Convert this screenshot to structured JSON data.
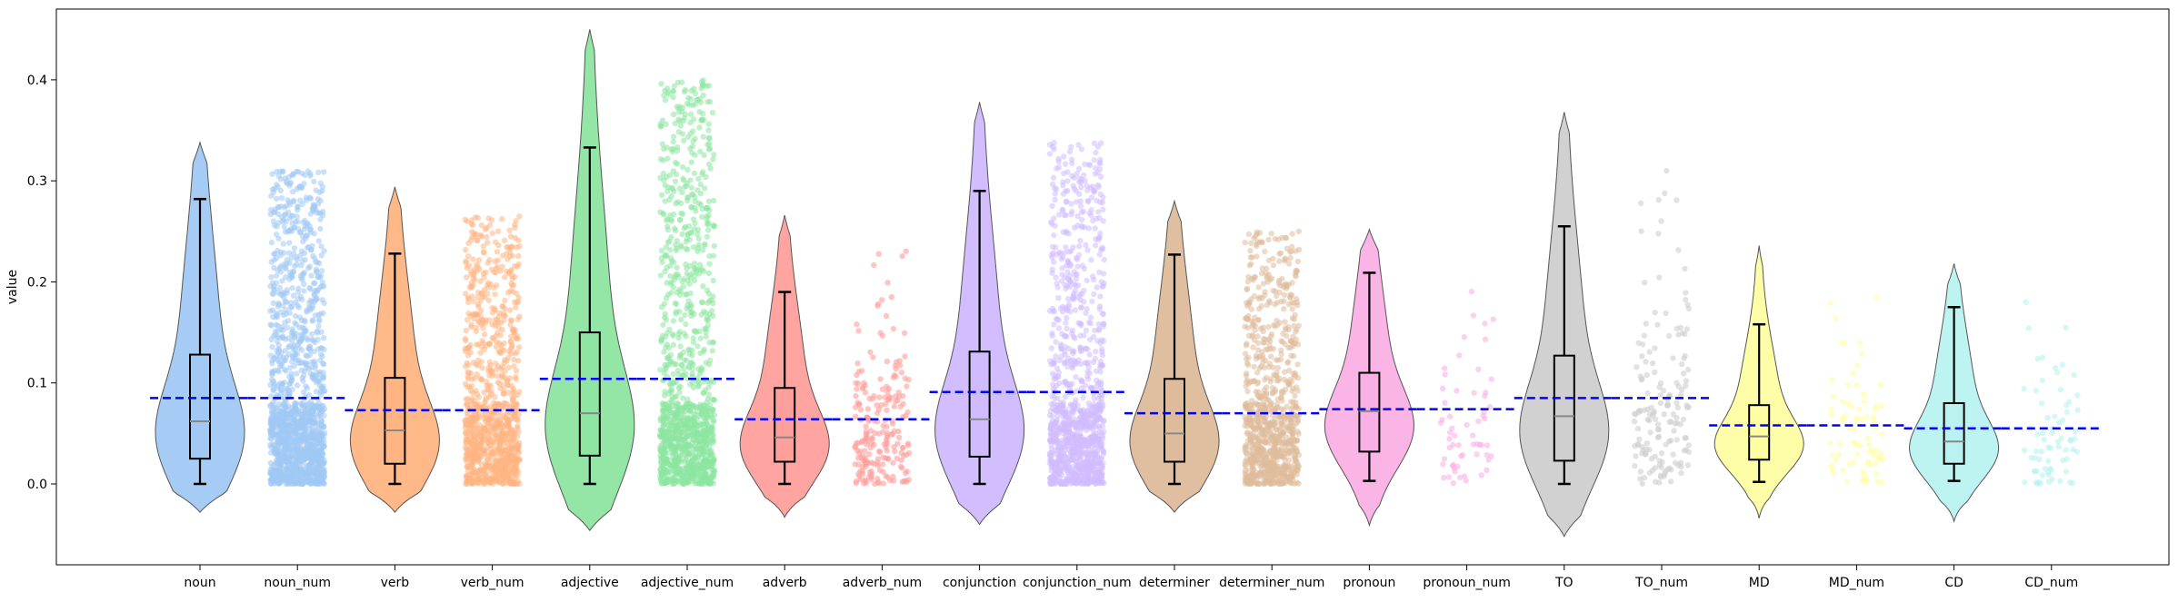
{
  "chart_data": {
    "type": "violin",
    "title": "",
    "xlabel": "",
    "ylabel": "value",
    "ylim": [
      -0.08,
      0.47
    ],
    "yticks": [
      0.0,
      0.1,
      0.2,
      0.3,
      0.4
    ],
    "ytick_labels": [
      "0.0",
      "0.1",
      "0.2",
      "0.3",
      "0.4"
    ],
    "grid": false,
    "legend": "none",
    "categories": [
      "noun",
      "noun_num",
      "verb",
      "verb_num",
      "adjective",
      "adjective_num",
      "adverb",
      "adverb_num",
      "conjunction",
      "conjunction_num",
      "determiner",
      "determiner_num",
      "pronoun",
      "pronoun_num",
      "TO",
      "TO_num",
      "MD",
      "MD_num",
      "CD",
      "CD_num"
    ],
    "mean_line_color": "#0000ff",
    "violins": [
      {
        "category": "noun",
        "color": "#a1c9f4",
        "kde_min": -0.028,
        "kde_max": 0.338,
        "whisker_low": 0.0,
        "q1": 0.025,
        "median": 0.062,
        "q3": 0.128,
        "whisker_high": 0.282,
        "mean": 0.085
      },
      {
        "category": "verb",
        "color": "#ffb482",
        "kde_min": -0.028,
        "kde_max": 0.294,
        "whisker_low": 0.0,
        "q1": 0.02,
        "median": 0.053,
        "q3": 0.105,
        "whisker_high": 0.228,
        "mean": 0.073
      },
      {
        "category": "adjective",
        "color": "#8de5a1",
        "kde_min": -0.046,
        "kde_max": 0.45,
        "whisker_low": 0.0,
        "q1": 0.028,
        "median": 0.07,
        "q3": 0.15,
        "whisker_high": 0.333,
        "mean": 0.104
      },
      {
        "category": "adverb",
        "color": "#ff9f9b",
        "kde_min": -0.033,
        "kde_max": 0.266,
        "whisker_low": 0.0,
        "q1": 0.022,
        "median": 0.046,
        "q3": 0.095,
        "whisker_high": 0.19,
        "mean": 0.064
      },
      {
        "category": "conjunction",
        "color": "#d0bbff",
        "kde_min": -0.04,
        "kde_max": 0.378,
        "whisker_low": 0.0,
        "q1": 0.027,
        "median": 0.064,
        "q3": 0.131,
        "whisker_high": 0.29,
        "mean": 0.091
      },
      {
        "category": "determiner",
        "color": "#debb9b",
        "kde_min": -0.028,
        "kde_max": 0.28,
        "whisker_low": 0.0,
        "q1": 0.022,
        "median": 0.05,
        "q3": 0.104,
        "whisker_high": 0.227,
        "mean": 0.07
      },
      {
        "category": "pronoun",
        "color": "#fab0e4",
        "kde_min": -0.041,
        "kde_max": 0.252,
        "whisker_low": 0.003,
        "q1": 0.032,
        "median": 0.072,
        "q3": 0.11,
        "whisker_high": 0.209,
        "mean": 0.074
      },
      {
        "category": "TO",
        "color": "#cfcfcf",
        "kde_min": -0.052,
        "kde_max": 0.368,
        "whisker_low": 0.0,
        "q1": 0.023,
        "median": 0.067,
        "q3": 0.127,
        "whisker_high": 0.255,
        "mean": 0.085
      },
      {
        "category": "MD",
        "color": "#fffea3",
        "kde_min": -0.034,
        "kde_max": 0.236,
        "whisker_low": 0.002,
        "q1": 0.024,
        "median": 0.047,
        "q3": 0.078,
        "whisker_high": 0.158,
        "mean": 0.058
      },
      {
        "category": "CD",
        "color": "#b9f2f0",
        "kde_min": -0.037,
        "kde_max": 0.218,
        "whisker_low": 0.003,
        "q1": 0.02,
        "median": 0.042,
        "q3": 0.08,
        "whisker_high": 0.175,
        "mean": 0.055
      }
    ],
    "strips": [
      {
        "category": "noun_num",
        "color": "#a1c9f4",
        "n": 1500,
        "max": 0.31,
        "mean": 0.085
      },
      {
        "category": "verb_num",
        "color": "#ffb482",
        "n": 1000,
        "max": 0.265,
        "mean": 0.073
      },
      {
        "category": "adjective_num",
        "color": "#8de5a1",
        "n": 1200,
        "max": 0.4,
        "mean": 0.104
      },
      {
        "category": "adverb_num",
        "color": "#ff9f9b",
        "n": 220,
        "max": 0.232,
        "mean": 0.064
      },
      {
        "category": "conjunction_num",
        "color": "#d0bbff",
        "n": 1100,
        "max": 0.338,
        "mean": 0.091
      },
      {
        "category": "determiner_num",
        "color": "#debb9b",
        "n": 900,
        "max": 0.25,
        "mean": 0.07
      },
      {
        "category": "pronoun_num",
        "color": "#fab0e4",
        "n": 60,
        "max": 0.21,
        "mean": 0.074
      },
      {
        "category": "TO_num",
        "color": "#cfcfcf",
        "n": 160,
        "max": 0.316,
        "mean": 0.085
      },
      {
        "category": "MD_num",
        "color": "#fffea3",
        "n": 80,
        "max": 0.2,
        "mean": 0.058
      },
      {
        "category": "CD_num",
        "color": "#b9f2f0",
        "n": 70,
        "max": 0.18,
        "mean": 0.055
      }
    ]
  }
}
